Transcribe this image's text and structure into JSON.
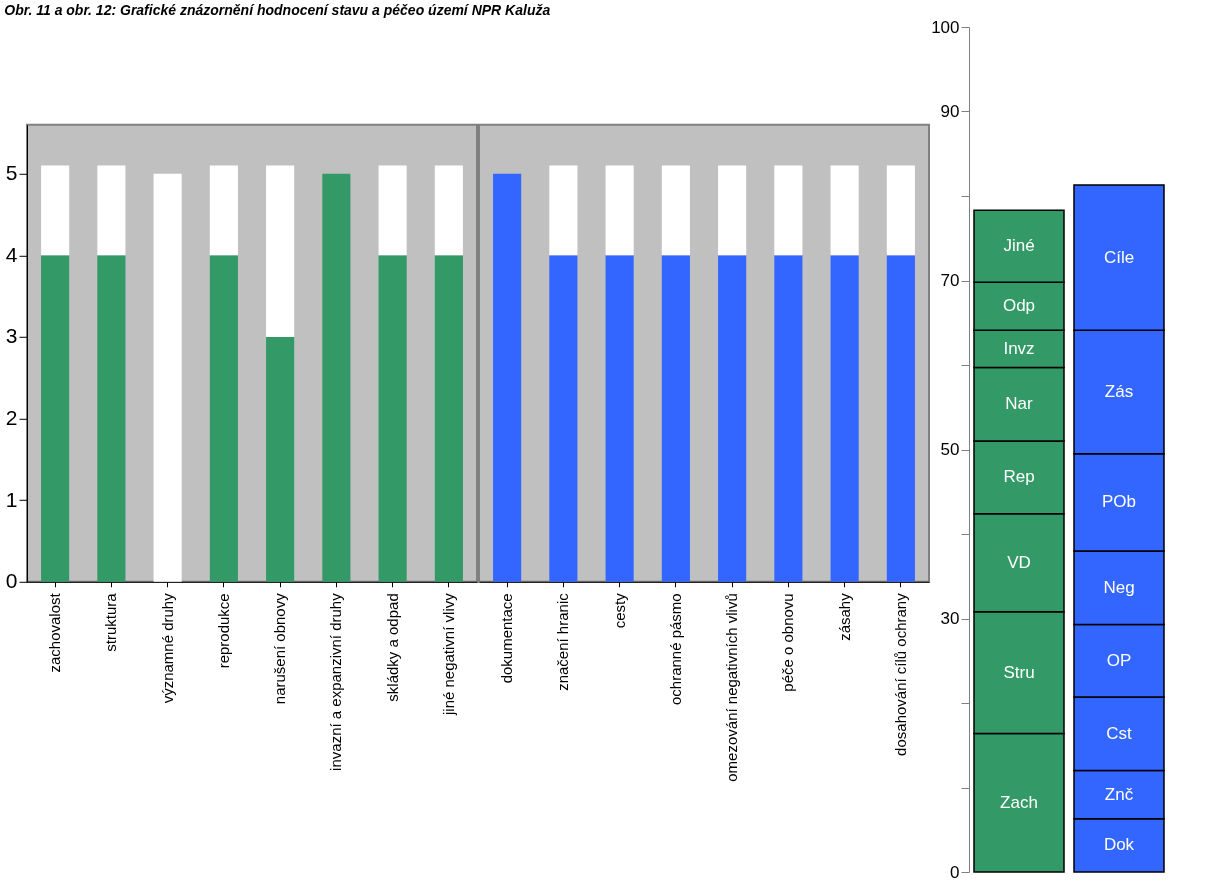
{
  "chart_data": [
    {
      "type": "bar",
      "title": "Obr. 11 a obr. 12: Grafické znázornění hodnocení stavu a péčeo území NPR Kaluža",
      "categories": [
        "zachovalost",
        "struktura",
        "významné druhy",
        "reprodukce",
        "narušení obnovy",
        "invazní a expanzivní druhy",
        "skládky a odpad",
        "jiné negativní vlivy"
      ],
      "stacked": true,
      "ylim": [
        0,
        5.6
      ],
      "yticks": [
        0,
        1,
        2,
        3,
        4,
        5
      ],
      "series": [
        {
          "color": "#339966",
          "values": [
            4,
            4,
            0,
            4,
            3,
            5,
            4,
            4
          ]
        },
        {
          "color": "#ffffff",
          "values": [
            1.1,
            1.1,
            5,
            1.1,
            2.1,
            0,
            1.1,
            1.1
          ]
        }
      ]
    },
    {
      "type": "bar",
      "categories": [
        "dokumentace",
        "značení hranic",
        "cesty",
        "ochranné pásmo",
        "omezování negativních vlivů",
        "péče o obnovu",
        "zásahy",
        "dosahování cílů ochrany"
      ],
      "stacked": true,
      "ylim": [
        0,
        5.6
      ],
      "yticks": [
        0,
        1,
        2,
        3,
        4,
        5
      ],
      "tick_labels": "x",
      "series": [
        {
          "color": "#3366ff",
          "values": [
            5,
            4,
            4,
            4,
            4,
            4,
            4,
            4
          ]
        },
        {
          "color": "#ffffff",
          "values": [
            0,
            1.1,
            1.1,
            1.1,
            1.1,
            1.1,
            1.1,
            1.1
          ]
        }
      ]
    },
    {
      "type": "bar",
      "categories": [
        null,
        null
      ],
      "stacked": true,
      "ylim": [
        0,
        100
      ],
      "yticks": [
        0,
        {
          "value": 10,
          "label": null
        },
        {
          "value": 20,
          "label": null
        },
        30,
        {
          "value": 40,
          "label": null
        },
        50,
        {
          "value": 60,
          "label": null
        },
        70,
        {
          "value": 80,
          "label": null
        },
        90,
        100
      ],
      "tick_labels": "y",
      "series": [
        {
          "name": "Zach",
          "color": "#339966",
          "values": [
            16.4,
            null
          ]
        },
        {
          "name": "Stru",
          "color": "#339966",
          "values": [
            14.4,
            null
          ]
        },
        {
          "name": "VD",
          "color": "#339966",
          "values": [
            11.6,
            null
          ]
        },
        {
          "name": "Rep",
          "color": "#339966",
          "values": [
            8.6,
            null
          ]
        },
        {
          "name": "Nar",
          "color": "#339966",
          "values": [
            8.7,
            null
          ]
        },
        {
          "name": "Invz",
          "color": "#339966",
          "values": [
            4.4,
            null
          ]
        },
        {
          "name": "Odp",
          "color": "#339966",
          "values": [
            5.7,
            null
          ]
        },
        {
          "name": "Jiné",
          "color": "#339966",
          "values": [
            8.5,
            null
          ]
        },
        {
          "name": "Dok",
          "color": "#3366ff",
          "values": [
            null,
            6.3
          ]
        },
        {
          "name": "Znč",
          "color": "#3366ff",
          "values": [
            null,
            5.7
          ]
        },
        {
          "name": "Cst",
          "color": "#3366ff",
          "values": [
            null,
            8.7
          ]
        },
        {
          "name": "OP",
          "color": "#3366ff",
          "values": [
            null,
            8.6
          ]
        },
        {
          "name": "Neg",
          "color": "#3366ff",
          "values": [
            null,
            8.7
          ]
        },
        {
          "name": "POb",
          "color": "#3366ff",
          "values": [
            null,
            11.5
          ]
        },
        {
          "name": "Zás",
          "color": "#3366ff",
          "values": [
            null,
            14.6
          ]
        },
        {
          "name": "Cíle",
          "color": "#3366ff",
          "values": [
            null,
            17.2
          ]
        }
      ]
    }
  ]
}
